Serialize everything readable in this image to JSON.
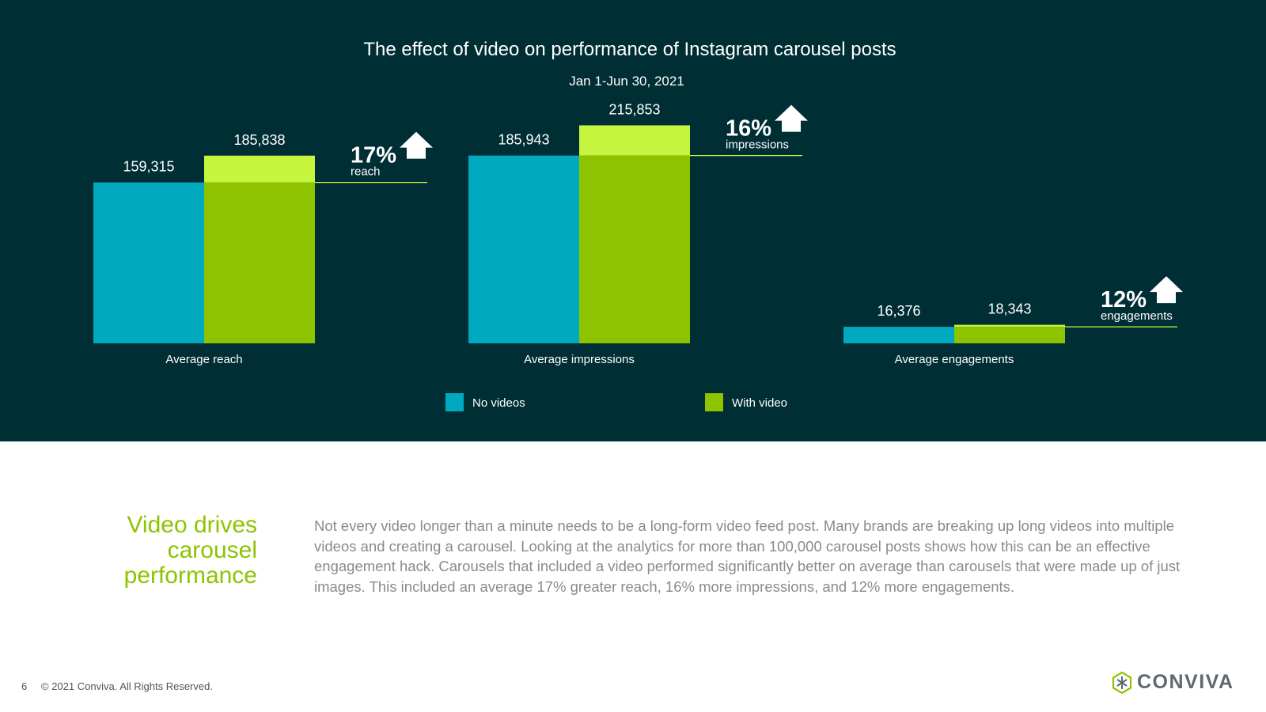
{
  "chart_data": {
    "type": "bar",
    "title": "The effect of video on performance of Instagram carousel posts",
    "subtitle": "Jan 1-Jun 30, 2021",
    "categories": [
      "Average reach",
      "Average impressions",
      "Average engagements"
    ],
    "series": [
      {
        "name": "No videos",
        "color": "#00a8c0",
        "values": [
          159315,
          185943,
          16376
        ],
        "labels": [
          "159,315",
          "185,943",
          "16,376"
        ]
      },
      {
        "name": "With video",
        "color": "#8ec300",
        "values": [
          185838,
          215853,
          18343
        ],
        "labels": [
          "185,838",
          "215,853",
          "18,343"
        ]
      }
    ],
    "increase_color": "#c6f53d",
    "annotations": [
      {
        "pct": "17%",
        "label": "reach"
      },
      {
        "pct": "16%",
        "label": "impressions"
      },
      {
        "pct": "12%",
        "label": "engagements"
      }
    ],
    "ylim": [
      0,
      235000
    ],
    "legend_position": "bottom"
  },
  "colors": {
    "panel_bg": "#002e35",
    "headline": "#8ec300",
    "body": "#8a8a8a"
  },
  "headline": {
    "line1": "Video drives",
    "line2": "carousel",
    "line3": "performance"
  },
  "body_text": "Not every video longer than a minute needs to be a long-form video feed post. Many brands are breaking up long videos into multiple videos and creating a carousel. Looking at the analytics for more than 100,000 carousel posts shows how this can be an effective engagement hack. Carousels that included a video performed significantly better on average than carousels that were made up of just images. This included an average 17% greater reach, 16% more impressions, and 12% more engagements.",
  "footer": {
    "page_number": "6",
    "copyright": "© 2021 Conviva. All Rights Reserved."
  },
  "logo": {
    "text": "CONVIVA",
    "icon": "conviva-logo-icon"
  }
}
